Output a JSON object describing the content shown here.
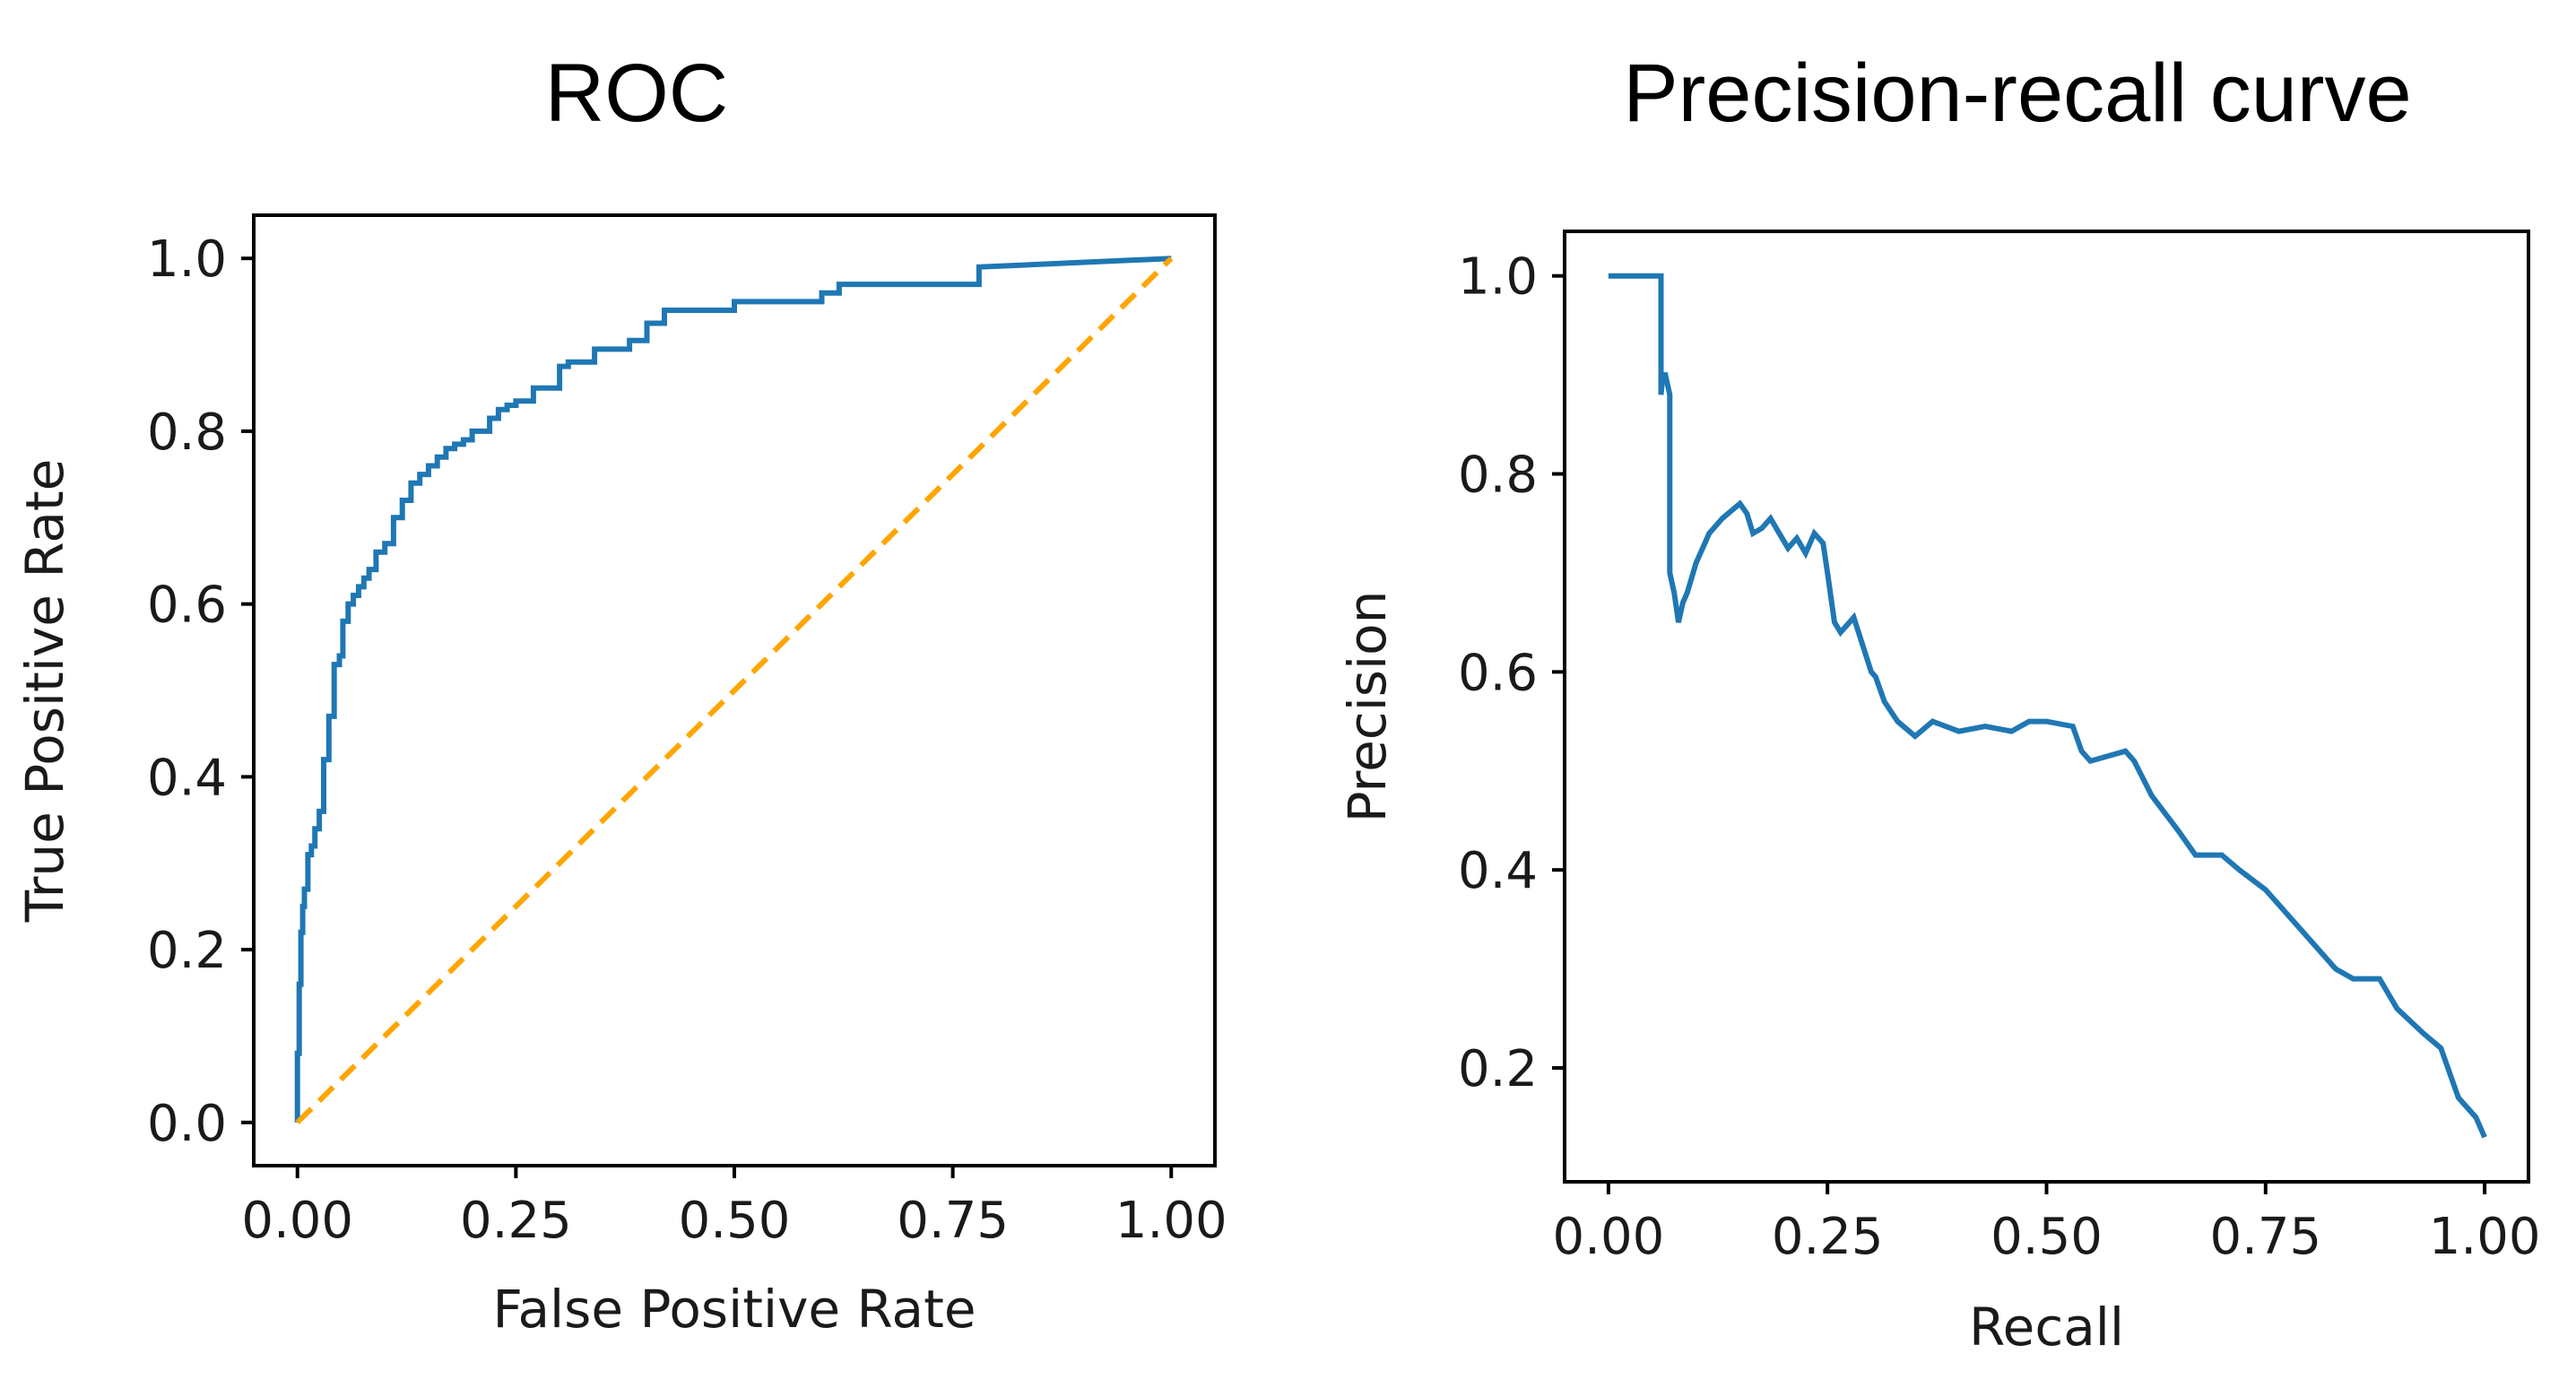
{
  "chart_data": [
    {
      "type": "line",
      "title": "ROC",
      "xlabel": "False Positive Rate",
      "ylabel": "True Positive Rate",
      "xlim": [
        -0.05,
        1.05
      ],
      "ylim": [
        -0.05,
        1.05
      ],
      "xticks": [
        "0.00",
        "0.25",
        "0.50",
        "0.75",
        "1.00"
      ],
      "yticks": [
        "0.0",
        "0.2",
        "0.4",
        "0.6",
        "0.8",
        "1.0"
      ],
      "xtick_values": [
        0.0,
        0.25,
        0.5,
        0.75,
        1.0
      ],
      "ytick_values": [
        0.0,
        0.2,
        0.4,
        0.6,
        0.8,
        1.0
      ],
      "grid": false,
      "series": [
        {
          "color": "#1f77b4",
          "style": "solid",
          "x": [
            0.0,
            0.0,
            0.0,
            0.002,
            0.002,
            0.004,
            0.004,
            0.006,
            0.006,
            0.008,
            0.008,
            0.012,
            0.012,
            0.016,
            0.016,
            0.02,
            0.02,
            0.025,
            0.025,
            0.03,
            0.03,
            0.036,
            0.036,
            0.042,
            0.042,
            0.048,
            0.048,
            0.052,
            0.052,
            0.058,
            0.058,
            0.064,
            0.064,
            0.07,
            0.07,
            0.076,
            0.076,
            0.082,
            0.082,
            0.09,
            0.09,
            0.1,
            0.1,
            0.11,
            0.11,
            0.12,
            0.12,
            0.13,
            0.13,
            0.14,
            0.14,
            0.15,
            0.15,
            0.16,
            0.16,
            0.17,
            0.17,
            0.18,
            0.18,
            0.19,
            0.19,
            0.2,
            0.2,
            0.22,
            0.22,
            0.23,
            0.23,
            0.24,
            0.24,
            0.25,
            0.25,
            0.27,
            0.27,
            0.3,
            0.3,
            0.31,
            0.31,
            0.34,
            0.34,
            0.38,
            0.38,
            0.4,
            0.4,
            0.42,
            0.42,
            0.5,
            0.5,
            0.6,
            0.6,
            0.62,
            0.62,
            0.78,
            0.78,
            1.0
          ],
          "y": [
            0.0,
            0.04,
            0.08,
            0.08,
            0.16,
            0.16,
            0.22,
            0.22,
            0.25,
            0.25,
            0.27,
            0.27,
            0.31,
            0.31,
            0.32,
            0.32,
            0.34,
            0.34,
            0.36,
            0.36,
            0.42,
            0.42,
            0.47,
            0.47,
            0.53,
            0.53,
            0.54,
            0.54,
            0.58,
            0.58,
            0.6,
            0.6,
            0.61,
            0.61,
            0.62,
            0.62,
            0.63,
            0.63,
            0.64,
            0.64,
            0.66,
            0.66,
            0.67,
            0.67,
            0.7,
            0.7,
            0.72,
            0.72,
            0.74,
            0.74,
            0.75,
            0.75,
            0.76,
            0.76,
            0.77,
            0.77,
            0.78,
            0.78,
            0.785,
            0.785,
            0.79,
            0.79,
            0.8,
            0.8,
            0.815,
            0.815,
            0.825,
            0.825,
            0.83,
            0.83,
            0.835,
            0.835,
            0.85,
            0.85,
            0.875,
            0.875,
            0.88,
            0.88,
            0.895,
            0.895,
            0.905,
            0.905,
            0.925,
            0.925,
            0.94,
            0.94,
            0.95,
            0.95,
            0.96,
            0.96,
            0.97,
            0.97,
            0.99,
            1.0
          ]
        },
        {
          "color": "#ffa500",
          "style": "dashed",
          "x": [
            0.0,
            1.0
          ],
          "y": [
            0.0,
            1.0
          ]
        }
      ]
    },
    {
      "type": "line",
      "title": "Precision-recall curve",
      "xlabel": "Recall",
      "ylabel": "Precision",
      "xlim": [
        -0.05,
        1.05
      ],
      "ylim": [
        0.085,
        1.045
      ],
      "xticks": [
        "0.00",
        "0.25",
        "0.50",
        "0.75",
        "1.00"
      ],
      "yticks": [
        "0.2",
        "0.4",
        "0.6",
        "0.8",
        "1.0"
      ],
      "xtick_values": [
        0.0,
        0.25,
        0.5,
        0.75,
        1.0
      ],
      "ytick_values": [
        0.2,
        0.4,
        0.6,
        0.8,
        1.0
      ],
      "grid": false,
      "series": [
        {
          "color": "#1f77b4",
          "style": "solid",
          "x": [
            0.0,
            0.06,
            0.06,
            0.062,
            0.065,
            0.07,
            0.07,
            0.075,
            0.08,
            0.085,
            0.09,
            0.1,
            0.115,
            0.13,
            0.15,
            0.158,
            0.165,
            0.175,
            0.185,
            0.195,
            0.205,
            0.215,
            0.225,
            0.235,
            0.245,
            0.25,
            0.258,
            0.265,
            0.28,
            0.3,
            0.305,
            0.315,
            0.33,
            0.35,
            0.37,
            0.4,
            0.43,
            0.46,
            0.48,
            0.5,
            0.53,
            0.54,
            0.55,
            0.57,
            0.59,
            0.6,
            0.62,
            0.65,
            0.67,
            0.7,
            0.72,
            0.75,
            0.78,
            0.8,
            0.83,
            0.85,
            0.88,
            0.9,
            0.93,
            0.95,
            0.97,
            0.99,
            1.0
          ],
          "y": [
            1.0,
            1.0,
            0.88,
            0.9,
            0.9,
            0.88,
            0.7,
            0.68,
            0.65,
            0.67,
            0.68,
            0.71,
            0.74,
            0.755,
            0.77,
            0.76,
            0.74,
            0.745,
            0.755,
            0.74,
            0.725,
            0.735,
            0.72,
            0.74,
            0.73,
            0.7,
            0.65,
            0.64,
            0.655,
            0.6,
            0.595,
            0.57,
            0.55,
            0.535,
            0.55,
            0.54,
            0.545,
            0.54,
            0.55,
            0.55,
            0.545,
            0.52,
            0.51,
            0.515,
            0.52,
            0.51,
            0.475,
            0.44,
            0.415,
            0.415,
            0.4,
            0.38,
            0.35,
            0.33,
            0.3,
            0.29,
            0.29,
            0.26,
            0.235,
            0.22,
            0.17,
            0.15,
            0.13
          ]
        }
      ]
    }
  ]
}
